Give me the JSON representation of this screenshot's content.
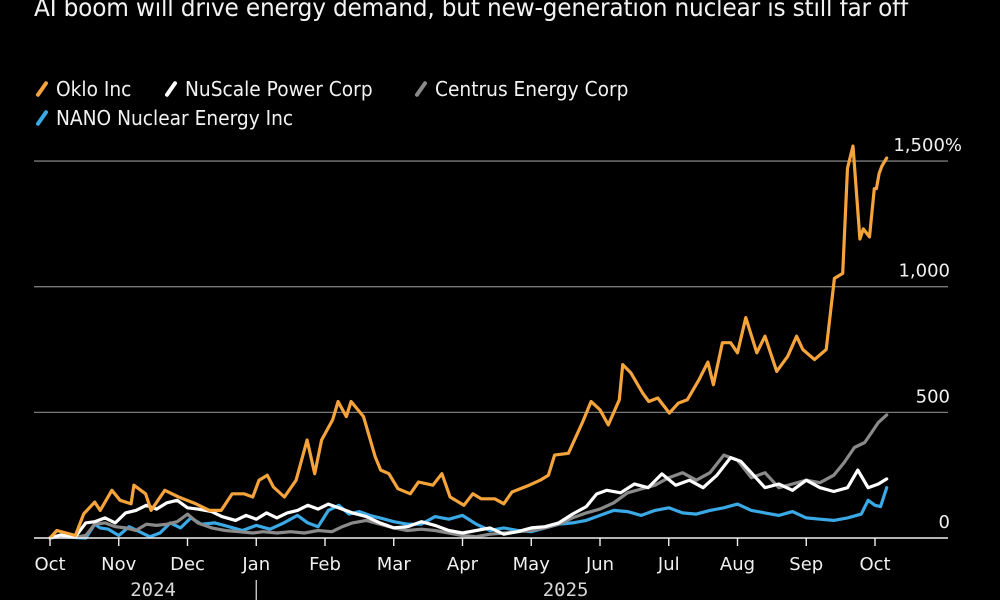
{
  "title": "AI boom will drive energy demand, but new-generation nuclear is still far off",
  "legend": [
    {
      "name": "Oklo Inc",
      "color": "#f5a33b"
    },
    {
      "name": "NuScale Power Corp",
      "color": "#ffffff"
    },
    {
      "name": "Centrus Energy Corp",
      "color": "#8a8a8a"
    },
    {
      "name": "NANO Nuclear Energy Inc",
      "color": "#3aa9e6"
    }
  ],
  "chart_data": {
    "type": "line",
    "title": "AI boom will drive energy demand, but new-generation nuclear is still far off",
    "xlabel": "",
    "ylabel": "",
    "y_unit": "%",
    "ylim": [
      0,
      1500
    ],
    "yticks": [
      0,
      500,
      1000,
      1500
    ],
    "ytick_labels": [
      "0",
      "500",
      "1,000",
      "1,500%"
    ],
    "x_unit": "months since Oct 1, 2024",
    "xlim": [
      0,
      12.5
    ],
    "xticks": [
      {
        "x": 0,
        "label": "Oct"
      },
      {
        "x": 1,
        "label": "Nov"
      },
      {
        "x": 2,
        "label": "Dec"
      },
      {
        "x": 3,
        "label": "Jan"
      },
      {
        "x": 4,
        "label": "Feb"
      },
      {
        "x": 5,
        "label": "Mar"
      },
      {
        "x": 6,
        "label": "Apr"
      },
      {
        "x": 7,
        "label": "May"
      },
      {
        "x": 8,
        "label": "Jun"
      },
      {
        "x": 9,
        "label": "Jul"
      },
      {
        "x": 10,
        "label": "Aug"
      },
      {
        "x": 11,
        "label": "Sep"
      },
      {
        "x": 12,
        "label": "Oct"
      }
    ],
    "year_labels": [
      {
        "x": 1.5,
        "label": "2024"
      },
      {
        "x": 7.5,
        "label": "2025"
      }
    ],
    "year_divider_x": 3,
    "grid": true,
    "legend_position": "top-left",
    "series": [
      {
        "name": "Oklo Inc",
        "color": "#f5a33b",
        "x": [
          0,
          0.1,
          0.37,
          0.49,
          0.65,
          0.73,
          0.9,
          1.02,
          1.18,
          1.22,
          1.39,
          1.47,
          1.67,
          1.87,
          2.12,
          2.32,
          2.49,
          2.65,
          2.82,
          2.95,
          3.04,
          3.16,
          3.25,
          3.41,
          3.58,
          3.74,
          3.85,
          3.95,
          4.11,
          4.19,
          4.31,
          4.38,
          4.56,
          4.73,
          4.81,
          4.93,
          5.06,
          5.24,
          5.36,
          5.57,
          5.7,
          5.82,
          6.02,
          6.15,
          6.27,
          6.47,
          6.6,
          6.72,
          6.97,
          7.13,
          7.25,
          7.34,
          7.54,
          7.75,
          7.87,
          8.0,
          8.12,
          8.28,
          8.33,
          8.45,
          8.62,
          8.71,
          8.84,
          9.01,
          9.14,
          9.27,
          9.44,
          9.57,
          9.65,
          9.78,
          9.9,
          10.0,
          10.12,
          10.28,
          10.4,
          10.57,
          10.73,
          10.86,
          10.95,
          11.12,
          11.29,
          11.41,
          11.53,
          11.6,
          11.68,
          11.78,
          11.83,
          11.92,
          11.99,
          12.02,
          12.06,
          12.1,
          12.17
        ],
        "values": [
          0,
          30,
          10,
          96,
          143,
          110,
          190,
          150,
          136,
          210,
          176,
          110,
          190,
          163,
          136,
          110,
          110,
          176,
          176,
          163,
          230,
          250,
          203,
          163,
          230,
          390,
          256,
          390,
          470,
          543,
          483,
          543,
          483,
          323,
          270,
          256,
          196,
          176,
          223,
          210,
          256,
          163,
          130,
          176,
          156,
          156,
          136,
          183,
          210,
          230,
          250,
          330,
          337,
          463,
          543,
          510,
          450,
          550,
          690,
          657,
          577,
          543,
          557,
          497,
          537,
          550,
          630,
          700,
          610,
          777,
          777,
          737,
          877,
          737,
          803,
          663,
          723,
          803,
          750,
          710,
          750,
          1033,
          1053,
          1472,
          1560,
          1190,
          1230,
          1198,
          1390,
          1390,
          1450,
          1480,
          1512
        ]
      },
      {
        "name": "NuScale Power Corp",
        "color": "#ffffff",
        "x": [
          0,
          0.15,
          0.37,
          0.52,
          0.65,
          0.8,
          0.95,
          1.1,
          1.25,
          1.4,
          1.55,
          1.7,
          1.85,
          2.0,
          2.15,
          2.35,
          2.5,
          2.7,
          2.85,
          3.0,
          3.15,
          3.3,
          3.45,
          3.6,
          3.75,
          3.9,
          4.05,
          4.25,
          4.4,
          4.6,
          4.8,
          5.0,
          5.2,
          5.4,
          5.6,
          5.8,
          6.0,
          6.2,
          6.4,
          6.6,
          6.8,
          7.0,
          7.2,
          7.4,
          7.6,
          7.8,
          7.95,
          8.1,
          8.3,
          8.5,
          8.7,
          8.9,
          9.1,
          9.3,
          9.5,
          9.7,
          9.9,
          10.05,
          10.2,
          10.4,
          10.6,
          10.8,
          11.0,
          11.2,
          11.4,
          11.6,
          11.75,
          11.9,
          12.05,
          12.17
        ],
        "values": [
          0,
          12,
          5,
          60,
          65,
          80,
          60,
          100,
          110,
          130,
          115,
          140,
          150,
          120,
          115,
          105,
          85,
          70,
          90,
          75,
          100,
          80,
          100,
          110,
          130,
          115,
          135,
          115,
          100,
          85,
          60,
          40,
          45,
          65,
          50,
          30,
          20,
          30,
          40,
          15,
          25,
          40,
          45,
          60,
          95,
          125,
          175,
          190,
          180,
          215,
          200,
          255,
          210,
          230,
          200,
          250,
          320,
          305,
          260,
          200,
          215,
          190,
          230,
          200,
          185,
          200,
          270,
          200,
          215,
          235
        ]
      },
      {
        "name": "Centrus Energy Corp",
        "color": "#8a8a8a",
        "x": [
          0,
          0.15,
          0.37,
          0.52,
          0.65,
          0.8,
          0.95,
          1.1,
          1.25,
          1.4,
          1.55,
          1.7,
          1.85,
          2.0,
          2.15,
          2.35,
          2.55,
          2.75,
          2.95,
          3.1,
          3.3,
          3.5,
          3.7,
          3.9,
          4.1,
          4.25,
          4.4,
          4.6,
          4.8,
          5.0,
          5.2,
          5.4,
          5.6,
          5.8,
          6.0,
          6.2,
          6.4,
          6.6,
          6.8,
          7.0,
          7.2,
          7.4,
          7.6,
          7.8,
          8.0,
          8.2,
          8.4,
          8.6,
          8.8,
          9.0,
          9.2,
          9.4,
          9.6,
          9.8,
          10.0,
          10.2,
          10.4,
          10.6,
          10.8,
          11.0,
          11.2,
          11.4,
          11.55,
          11.7,
          11.85,
          11.95,
          12.05,
          12.17
        ],
        "values": [
          0,
          8,
          3,
          10,
          55,
          60,
          45,
          40,
          30,
          55,
          50,
          55,
          65,
          95,
          60,
          40,
          30,
          25,
          20,
          25,
          20,
          25,
          20,
          30,
          25,
          45,
          60,
          70,
          55,
          40,
          30,
          35,
          30,
          20,
          10,
          5,
          15,
          20,
          25,
          30,
          40,
          55,
          80,
          100,
          115,
          140,
          180,
          195,
          210,
          240,
          260,
          230,
          260,
          330,
          310,
          240,
          260,
          200,
          215,
          230,
          220,
          250,
          300,
          360,
          380,
          420,
          460,
          490
        ]
      },
      {
        "name": "NANO Nuclear Energy Inc",
        "color": "#3aa9e6",
        "x": [
          0,
          0.15,
          0.37,
          0.52,
          0.65,
          0.73,
          0.85,
          1.0,
          1.15,
          1.3,
          1.45,
          1.6,
          1.75,
          1.9,
          2.05,
          2.2,
          2.4,
          2.6,
          2.8,
          3.0,
          3.2,
          3.4,
          3.6,
          3.75,
          3.9,
          4.05,
          4.2,
          4.35,
          4.5,
          4.65,
          4.8,
          5.0,
          5.2,
          5.4,
          5.6,
          5.8,
          6.0,
          6.2,
          6.4,
          6.6,
          6.8,
          7.0,
          7.2,
          7.4,
          7.6,
          7.8,
          8.0,
          8.2,
          8.4,
          8.6,
          8.8,
          9.0,
          9.2,
          9.4,
          9.6,
          9.8,
          10.0,
          10.2,
          10.4,
          10.6,
          10.8,
          11.0,
          11.2,
          11.4,
          11.6,
          11.8,
          11.9,
          12.0,
          12.08,
          12.17
        ],
        "values": [
          0,
          6,
          2,
          0,
          55,
          40,
          35,
          10,
          45,
          25,
          5,
          20,
          60,
          40,
          80,
          55,
          60,
          45,
          30,
          50,
          35,
          60,
          90,
          60,
          45,
          110,
          130,
          95,
          105,
          90,
          80,
          65,
          55,
          55,
          85,
          75,
          90,
          55,
          30,
          40,
          30,
          25,
          40,
          55,
          60,
          70,
          90,
          110,
          105,
          90,
          110,
          120,
          100,
          95,
          110,
          120,
          135,
          110,
          100,
          90,
          105,
          80,
          75,
          70,
          80,
          95,
          150,
          130,
          125,
          200
        ]
      }
    ]
  }
}
